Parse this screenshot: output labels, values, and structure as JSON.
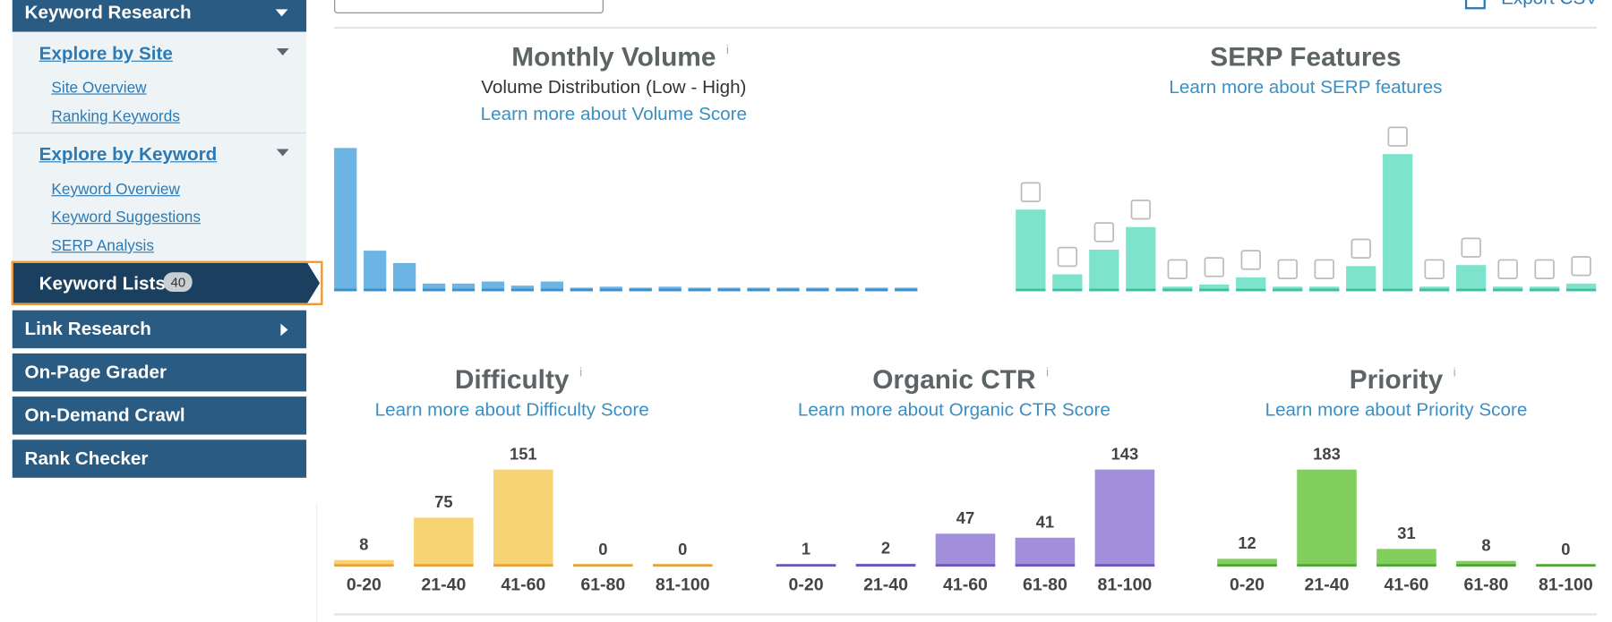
{
  "sidebar": {
    "keyword_research": "Keyword Research",
    "explore_by_site": "Explore by Site",
    "site_overview": "Site Overview",
    "ranking_keywords": "Ranking Keywords",
    "explore_by_keyword": "Explore by Keyword",
    "keyword_overview": "Keyword Overview",
    "keyword_suggestions": "Keyword Suggestions",
    "serp_analysis": "SERP Analysis",
    "keyword_lists": "Keyword Lists",
    "keyword_lists_count": "40",
    "link_research": "Link Research",
    "on_page_grader": "On-Page Grader",
    "on_demand_crawl": "On-Demand Crawl",
    "rank_checker": "Rank Checker"
  },
  "toolbar": {
    "export": "Export CSV"
  },
  "chart_data": [
    {
      "type": "bar",
      "title": "Monthly Volume",
      "info": "i",
      "subtitle": "Volume Distribution (Low - High)",
      "link": "Learn more about Volume Score",
      "color": "#6cb4e4",
      "baseline_color": "#3f8fc8",
      "values": [
        138,
        38,
        26,
        6,
        6,
        8,
        4,
        8,
        2,
        3,
        2,
        3,
        2,
        2,
        2,
        2,
        2,
        2,
        2,
        2
      ],
      "ylim": [
        0,
        138
      ]
    },
    {
      "type": "bar",
      "title": "SERP Features",
      "link": "Learn more about SERP features",
      "color": "#7de3cc",
      "baseline_color": "#3fbf9f",
      "values": [
        78,
        15,
        39,
        61,
        3,
        5,
        12,
        3,
        3,
        23,
        132,
        3,
        24,
        3,
        3,
        6
      ],
      "ylim": [
        0,
        132
      ]
    },
    {
      "type": "bar",
      "title": "Difficulty",
      "info": "i",
      "link": "Learn more about Difficulty Score",
      "color": "#f8d374",
      "baseline_color": "#e7a23c",
      "categories": [
        "0-20",
        "21-40",
        "41-60",
        "61-80",
        "81-100"
      ],
      "values": [
        8,
        75,
        151,
        0,
        0
      ],
      "ylim": [
        0,
        151
      ]
    },
    {
      "type": "bar",
      "title": "Organic CTR",
      "info": "i",
      "link": "Learn more about Organic CTR Score",
      "color": "#a18fdb",
      "baseline_color": "#6b56b8",
      "categories": [
        "0-20",
        "21-40",
        "41-60",
        "61-80",
        "81-100"
      ],
      "values": [
        1,
        2,
        47,
        41,
        143
      ],
      "ylim": [
        0,
        143
      ]
    },
    {
      "type": "bar",
      "title": "Priority",
      "info": "i",
      "link": "Learn more about Priority Score",
      "color": "#82cf5e",
      "baseline_color": "#4ea536",
      "categories": [
        "0-20",
        "21-40",
        "41-60",
        "61-80",
        "81-100"
      ],
      "values": [
        12,
        183,
        31,
        8,
        0
      ],
      "ylim": [
        0,
        183
      ]
    }
  ]
}
